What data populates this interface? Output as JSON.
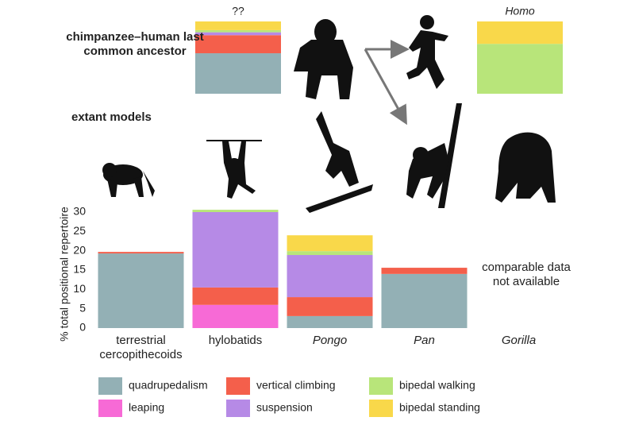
{
  "chart_data": {
    "type": "stacked_bar",
    "y_label": "% total positional repertoire",
    "categories": [
      "terrestrial cercopithecoids",
      "hylobatids",
      "Pongo",
      "Pan",
      "Gorilla"
    ],
    "italic_categories": [
      false,
      false,
      true,
      true,
      true
    ],
    "series": [
      {
        "name": "quadrupedalism",
        "color": "#93b0b5",
        "values": [
          19.3,
          0,
          3.1,
          14,
          null
        ]
      },
      {
        "name": "leaping",
        "color": "#f76ad6",
        "values": [
          0,
          6,
          0,
          0,
          null
        ]
      },
      {
        "name": "vertical climbing",
        "color": "#f45f4b",
        "values": [
          0.4,
          4.5,
          4.9,
          1.6,
          null
        ]
      },
      {
        "name": "suspension",
        "color": "#b68ae6",
        "values": [
          0,
          19.5,
          10.9,
          0,
          null
        ]
      },
      {
        "name": "bipedal walking",
        "color": "#b8e57a",
        "values": [
          0,
          0.6,
          1,
          0,
          null
        ]
      },
      {
        "name": "bipedal standing",
        "color": "#f9d84a",
        "values": [
          0,
          0,
          4.1,
          0,
          null
        ]
      }
    ],
    "ylim": [
      0,
      30
    ],
    "yticks": [
      0,
      5,
      10,
      15,
      20,
      25,
      30
    ],
    "annotation": "comparable data not available",
    "heading_ancestor": "chimpanzee–human last common ancestor",
    "heading_extant": "extant models",
    "reconstructions": [
      {
        "label": "??",
        "italic": false,
        "values": [
          56,
          0,
          25,
          4,
          3,
          12
        ]
      },
      {
        "label": "Homo",
        "italic": true,
        "values": [
          0,
          0,
          0,
          0,
          69,
          31
        ]
      }
    ]
  }
}
